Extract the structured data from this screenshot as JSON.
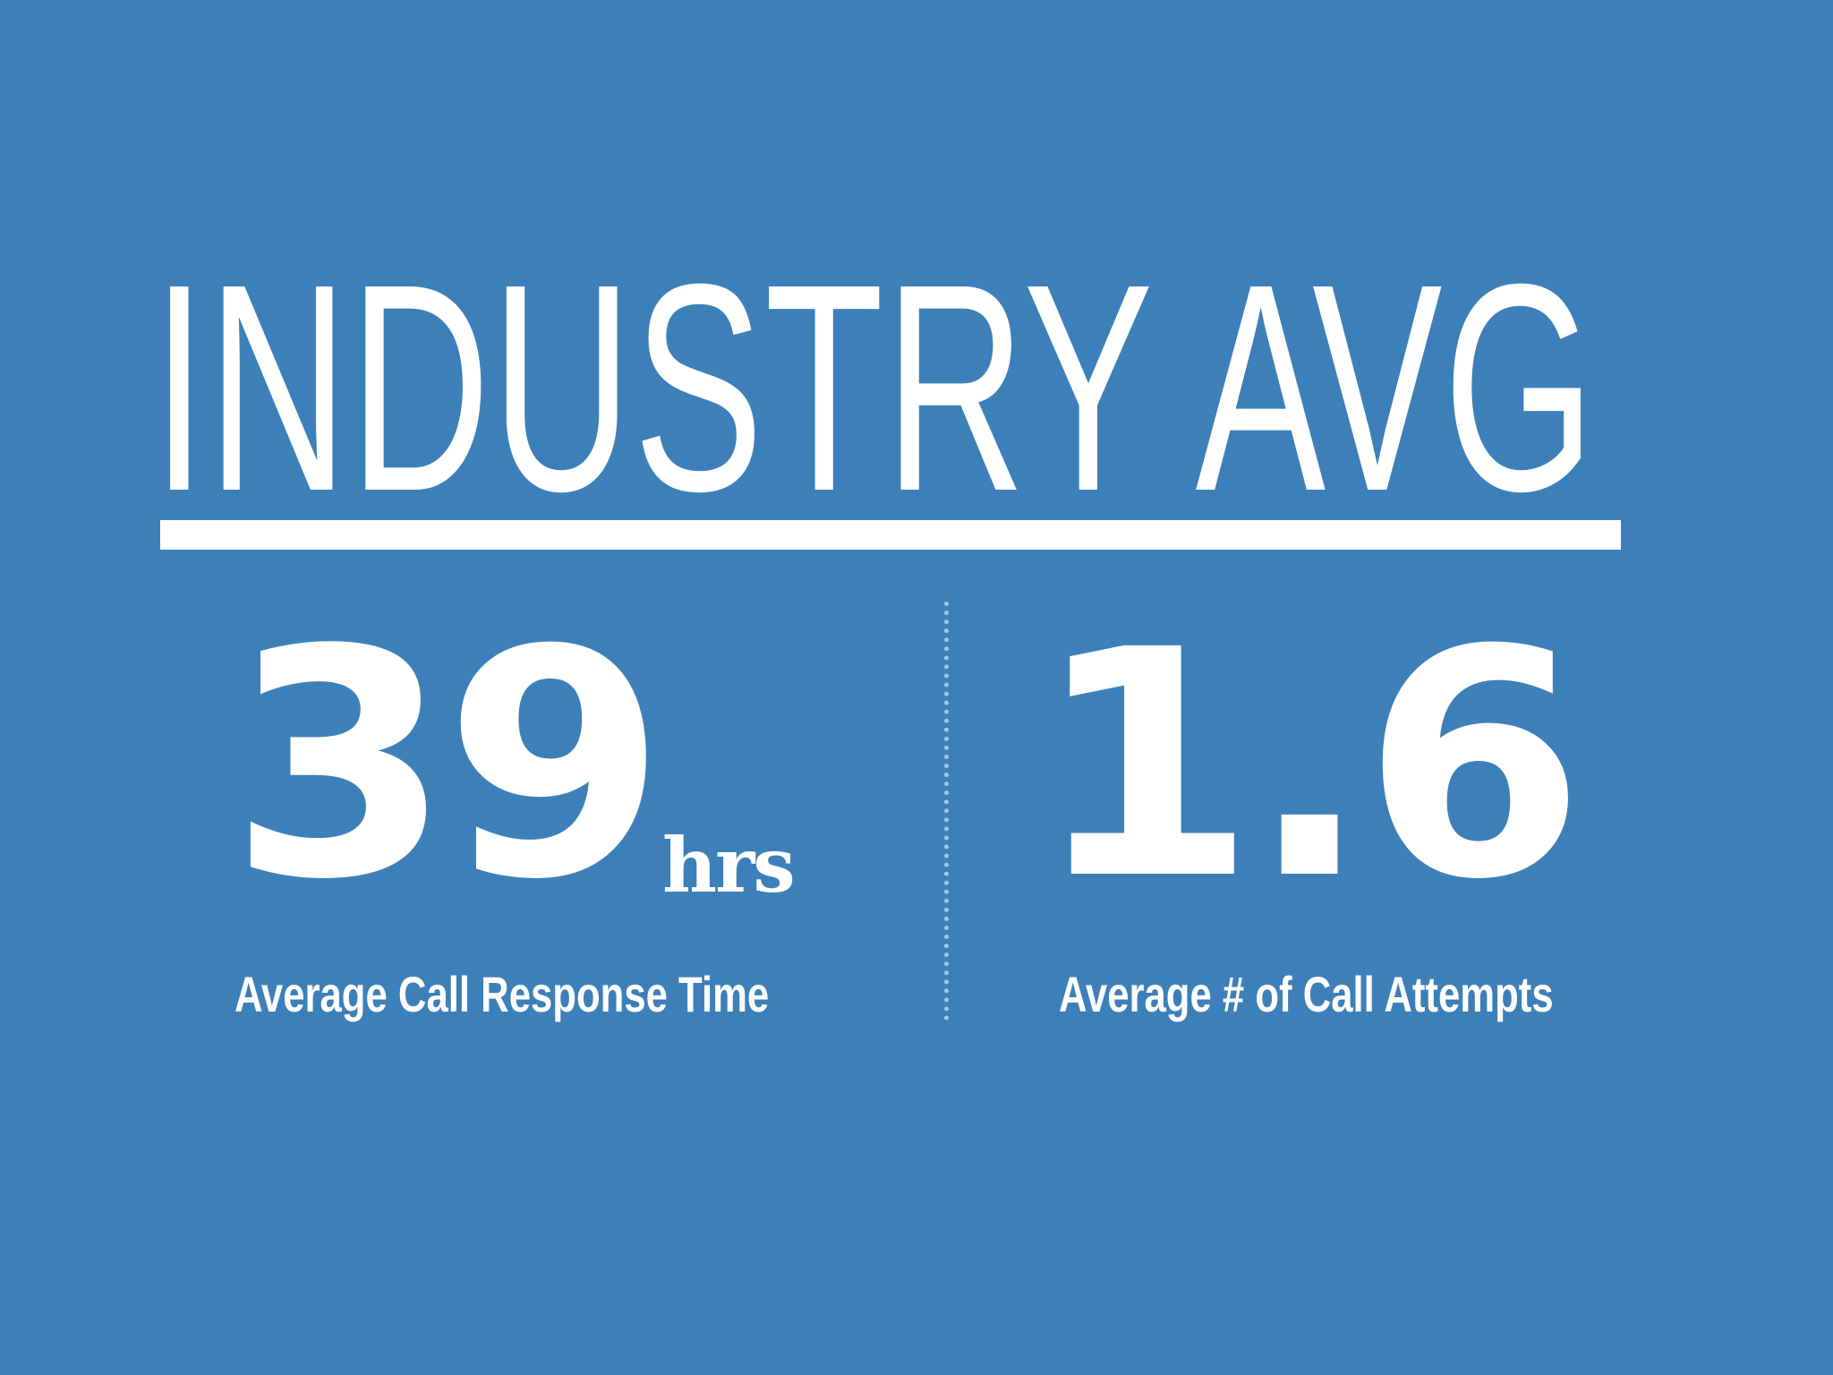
{
  "title": "INDUSTRY AVG",
  "stats": [
    {
      "value": "39",
      "unit": "hrs",
      "label": "Average Call Response Time"
    },
    {
      "value": "1.6",
      "label": "Average # of Call Attempts"
    }
  ],
  "colors": {
    "background": "#3d80b9",
    "text": "#ffffff"
  }
}
